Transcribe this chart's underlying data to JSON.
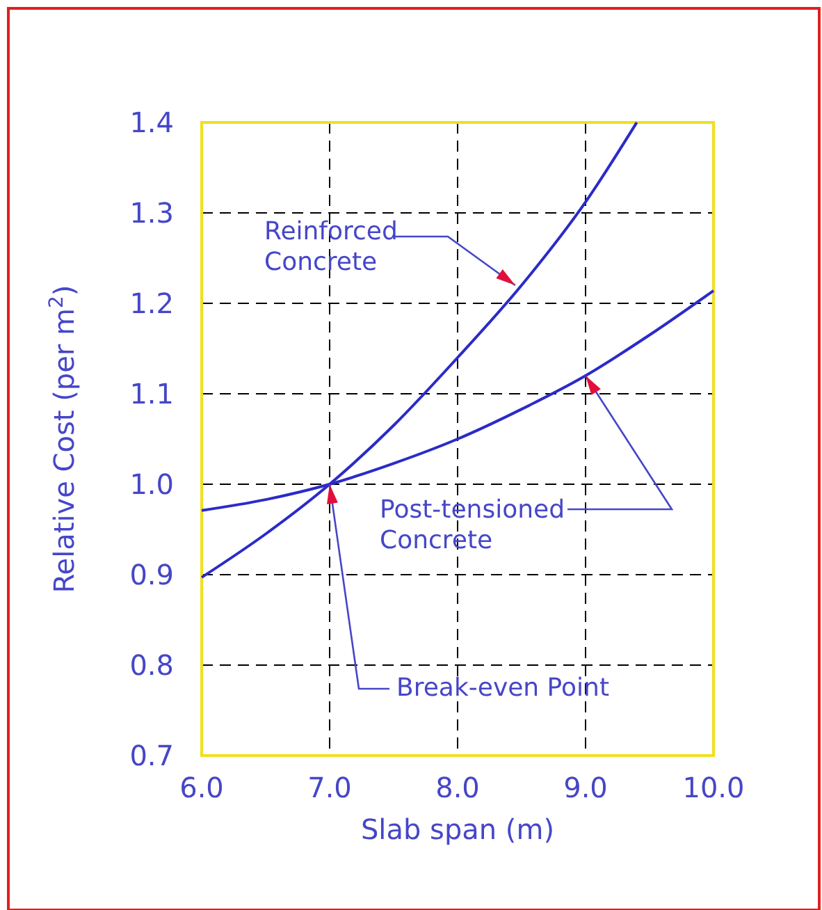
{
  "chart_data": {
    "type": "line",
    "xlabel": "Slab span (m)",
    "ylabel": "Relative Cost (per m$^{2}$)",
    "xlim": [
      6.0,
      10.0
    ],
    "xticks": [
      {
        "value": 6,
        "label": "6.0"
      },
      {
        "value": 7,
        "label": "7.0"
      },
      {
        "value": 8,
        "label": "8.0"
      },
      {
        "value": 9,
        "label": "9.0"
      },
      {
        "value": 10,
        "label": "10.0"
      }
    ],
    "ylim": [
      0.7,
      1.4
    ],
    "yticks": [
      0.7,
      0.8,
      0.9,
      {
        "value": 1,
        "label": "1.0"
      },
      1.1,
      1.2,
      1.3,
      1.4
    ],
    "grid": true,
    "marker": "none",
    "line_style": "solid",
    "series": [
      {
        "color": "#2b2bc8",
        "x": [
          6.0,
          6.5,
          7.0,
          7.5,
          8.0,
          8.5,
          9.0,
          9.4
        ],
        "values": [
          0.897,
          0.945,
          1.0,
          1.065,
          1.14,
          1.22,
          1.312,
          1.4
        ]
      },
      {
        "color": "#2b2bc8",
        "x": [
          6.0,
          6.5,
          7.0,
          7.5,
          8.0,
          8.5,
          9.0,
          9.5,
          10.0
        ],
        "values": [
          0.971,
          0.983,
          1.0,
          1.023,
          1.05,
          1.083,
          1.12,
          1.165,
          1.214
        ]
      }
    ],
    "annotations": [
      {
        "text": "Reinforced\nConcrete",
        "x": 8.45,
        "y": 1.22
      },
      {
        "text": "Post-tensioned\nConcrete",
        "x": 9.0,
        "y": 1.12
      },
      {
        "text": "Break-even Point",
        "x": 7.0,
        "y": 1.0
      }
    ]
  }
}
